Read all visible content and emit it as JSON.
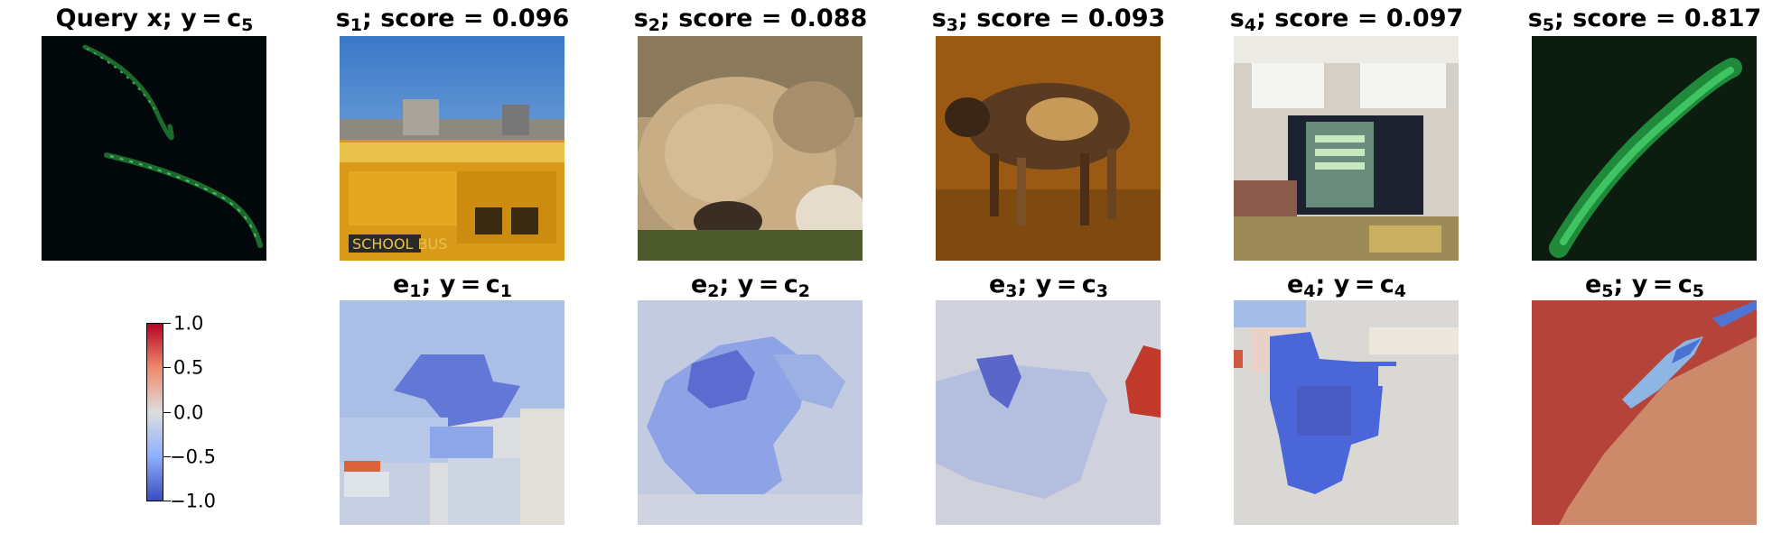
{
  "top_row": [
    {
      "prefix": "Query x; y = ",
      "main": "c",
      "sub": "5",
      "rest": "",
      "image": "green-worm-dark-background"
    },
    {
      "prefix": "",
      "main": "s",
      "sub": "1",
      "rest": "; score = 0.096",
      "image": "yellow-school-buses-parking-lot"
    },
    {
      "prefix": "",
      "main": "s",
      "sub": "2",
      "rest": "; score = 0.088",
      "image": "lioness-resting-on-paws"
    },
    {
      "prefix": "",
      "main": "s",
      "sub": "3",
      "rest": "; score = 0.093",
      "image": "african-wild-dog-dry-grass"
    },
    {
      "prefix": "",
      "main": "s",
      "sub": "4",
      "rest": "; score = 0.097",
      "image": "indoor-arena-scoreboard-crowd"
    },
    {
      "prefix": "",
      "main": "s",
      "sub": "5",
      "rest": "; score = 0.817",
      "image": "green-worm-close-up"
    }
  ],
  "bottom_row": [
    {
      "e_sub": "1",
      "c_sub": "1"
    },
    {
      "e_sub": "2",
      "c_sub": "2"
    },
    {
      "e_sub": "3",
      "c_sub": "3"
    },
    {
      "e_sub": "4",
      "c_sub": "4"
    },
    {
      "e_sub": "5",
      "c_sub": "5"
    }
  ],
  "bottom_label": {
    "mid": "; y = ",
    "c": "c",
    "e": "e"
  },
  "colorbar": {
    "colormap": "coolwarm",
    "min": -1.0,
    "max": 1.0,
    "ticks": [
      "1.0",
      "0.5",
      "0.0",
      "−0.5",
      "−1.0"
    ],
    "colors": [
      "#b40426",
      "#f08a6c",
      "#dddddd",
      "#8db0fe",
      "#3b4cc0"
    ]
  }
}
